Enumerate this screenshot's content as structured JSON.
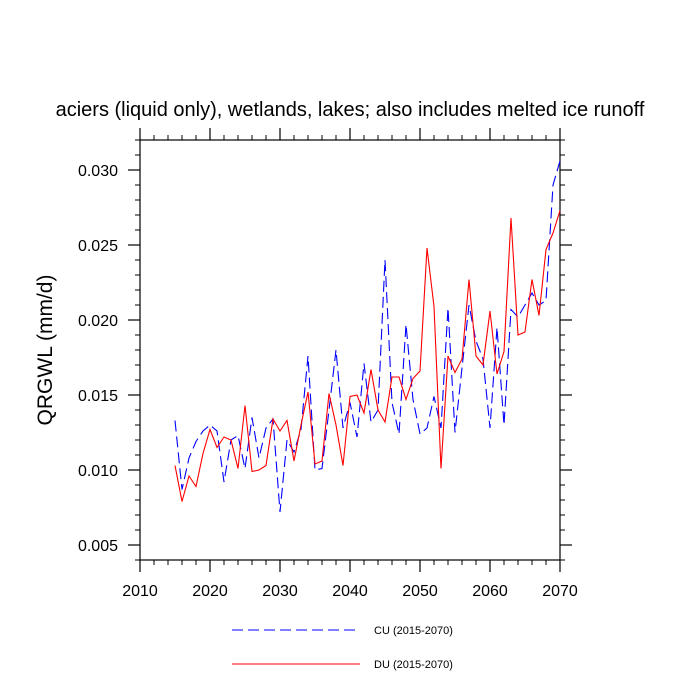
{
  "chart_data": {
    "type": "line",
    "title": "aciers (liquid only), wetlands, lakes; also includes melted ice runoff",
    "xlabel": "",
    "ylabel": "QRGWL  (mm/d)",
    "xlim": [
      2010,
      2070
    ],
    "ylim": [
      0.004,
      0.032
    ],
    "xticks": [
      2010,
      2020,
      2030,
      2040,
      2050,
      2060,
      2070
    ],
    "xtick_labels": [
      "2010",
      "2020",
      "2030",
      "2040",
      "2050",
      "2060",
      "2070"
    ],
    "yticks": [
      0.005,
      0.01,
      0.015,
      0.02,
      0.025,
      0.03
    ],
    "ytick_labels": [
      "0.005",
      "0.010",
      "0.015",
      "0.020",
      "0.025",
      "0.030"
    ],
    "x": [
      2015,
      2016,
      2017,
      2018,
      2019,
      2020,
      2021,
      2022,
      2023,
      2024,
      2025,
      2026,
      2027,
      2028,
      2029,
      2030,
      2031,
      2032,
      2033,
      2034,
      2035,
      2036,
      2037,
      2038,
      2039,
      2040,
      2041,
      2042,
      2043,
      2044,
      2045,
      2046,
      2047,
      2048,
      2049,
      2050,
      2051,
      2052,
      2053,
      2054,
      2055,
      2056,
      2057,
      2058,
      2059,
      2060,
      2061,
      2062,
      2063,
      2064,
      2065,
      2066,
      2067,
      2068,
      2069,
      2070
    ],
    "series": [
      {
        "name": "CU (2015-2070)",
        "color": "#0000ff",
        "dash": "dashed",
        "values": [
          0.0133,
          0.0087,
          0.0108,
          0.0119,
          0.0126,
          0.013,
          0.0126,
          0.0092,
          0.012,
          0.0123,
          0.0101,
          0.0135,
          0.0108,
          0.0128,
          0.0134,
          0.0072,
          0.012,
          0.0112,
          0.0127,
          0.0176,
          0.01,
          0.0101,
          0.014,
          0.018,
          0.0128,
          0.0145,
          0.0122,
          0.0171,
          0.0132,
          0.014,
          0.024,
          0.0145,
          0.0124,
          0.0197,
          0.0147,
          0.0124,
          0.0128,
          0.0149,
          0.0128,
          0.0208,
          0.0125,
          0.0168,
          0.021,
          0.0186,
          0.0174,
          0.0128,
          0.0195,
          0.013,
          0.0207,
          0.0202,
          0.021,
          0.0218,
          0.021,
          0.0213,
          0.029,
          0.0306
        ]
      },
      {
        "name": "DU (2015-2070)",
        "color": "#ff0000",
        "dash": "solid",
        "values": [
          0.0103,
          0.0079,
          0.0096,
          0.0089,
          0.0111,
          0.0127,
          0.0115,
          0.0122,
          0.012,
          0.0101,
          0.0143,
          0.0099,
          0.01,
          0.0103,
          0.0134,
          0.0126,
          0.0133,
          0.0106,
          0.013,
          0.0152,
          0.0104,
          0.0106,
          0.0151,
          0.013,
          0.0103,
          0.0149,
          0.015,
          0.0138,
          0.0167,
          0.014,
          0.0132,
          0.0162,
          0.0162,
          0.0147,
          0.0161,
          0.0166,
          0.0248,
          0.0209,
          0.0101,
          0.0176,
          0.0165,
          0.0174,
          0.0227,
          0.0176,
          0.017,
          0.0206,
          0.0164,
          0.0179,
          0.0268,
          0.019,
          0.0192,
          0.0227,
          0.0203,
          0.0247,
          0.0258,
          0.0273
        ]
      }
    ],
    "legend": [
      "CU (2015-2070)",
      "DU (2015-2070)"
    ]
  }
}
